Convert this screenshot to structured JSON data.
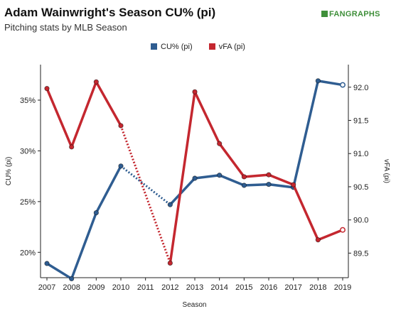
{
  "header": {
    "title": "Adam Wainwright's Season CU% (pi)",
    "subtitle": "Pitching stats by MLB Season",
    "logo_text": "FANGRAPHS"
  },
  "chart_data": {
    "type": "line",
    "title": "Adam Wainwright's Season CU% (pi)",
    "subtitle": "Pitching stats by MLB Season",
    "xlabel": "Season",
    "ylabel": "CU% (pi)",
    "y2label": "vFA (pi)",
    "categories": [
      "2007",
      "2008",
      "2009",
      "2010",
      "2011",
      "2012",
      "2013",
      "2014",
      "2015",
      "2016",
      "2017",
      "2018",
      "2019"
    ],
    "xlim": [
      2007,
      2019
    ],
    "ylim": [
      17.5,
      38.5
    ],
    "y2lim": [
      89.13,
      92.34
    ],
    "yticks": [
      20,
      25,
      30,
      35
    ],
    "yticklabels": [
      "20%",
      "25%",
      "30%",
      "35%"
    ],
    "y2ticks": [
      89.5,
      90.0,
      90.5,
      91.0,
      91.5,
      92.0
    ],
    "y2ticklabels": [
      "89.5",
      "90.0",
      "90.5",
      "91.0",
      "91.5",
      "92.0"
    ],
    "grid": false,
    "legend_position": "top-center",
    "series": [
      {
        "name": "CU% (pi)",
        "axis": "left",
        "color": "#2f5d91",
        "x": [
          2007,
          2008,
          2009,
          2010,
          2012,
          2013,
          2014,
          2015,
          2016,
          2017,
          2018,
          2019
        ],
        "values": [
          18.9,
          17.4,
          23.9,
          28.5,
          24.7,
          27.3,
          27.6,
          26.6,
          26.7,
          26.4,
          36.9,
          36.5
        ]
      },
      {
        "name": "vFA (pi)",
        "axis": "right",
        "color": "#c4272f",
        "x": [
          2007,
          2008,
          2009,
          2010,
          2012,
          2013,
          2014,
          2015,
          2016,
          2017,
          2018,
          2019
        ],
        "values": [
          91.98,
          91.1,
          92.08,
          91.42,
          89.35,
          91.93,
          91.15,
          90.65,
          90.68,
          90.53,
          89.7,
          89.85
        ]
      }
    ]
  }
}
